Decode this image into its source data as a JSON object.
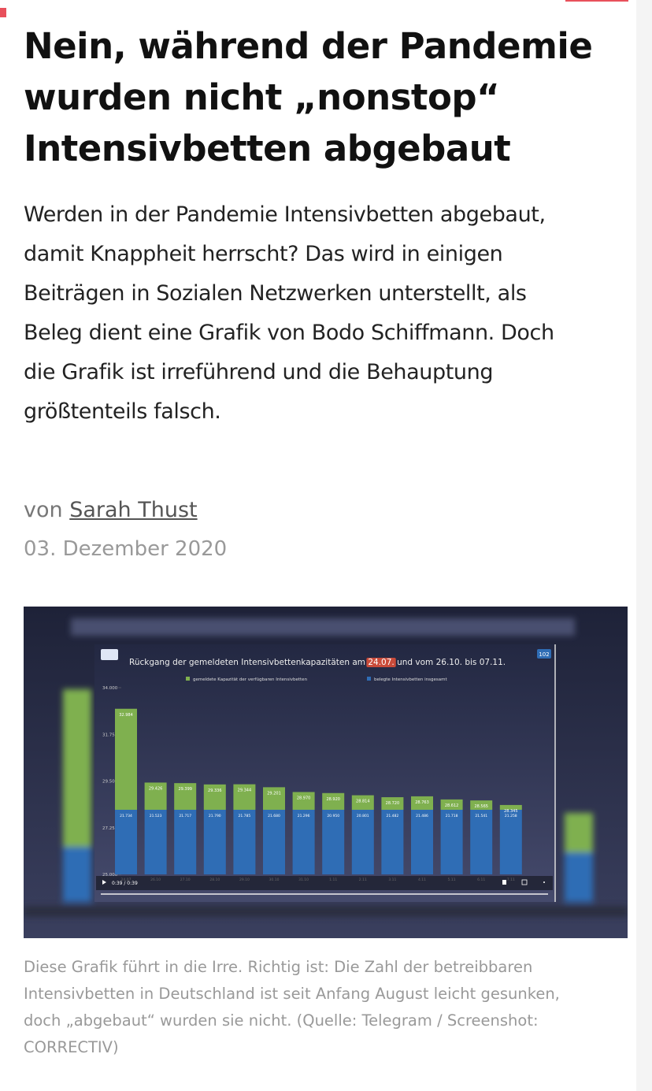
{
  "article": {
    "title_lines": [
      "Nein, während der Pandemie",
      "wurden nicht „nonstop“",
      "Intensivbetten abgebaut"
    ],
    "lead_lines": [
      "Werden in der Pandemie Intensivbetten abgebaut,",
      "damit Knappheit herrscht? Das wird in einigen",
      "Beiträgen in Sozialen Netzwerken unterstellt, als",
      "Beleg dient eine Grafik von Bodo Schiffmann. Doch",
      "die Grafik ist irreführend und die Behauptung",
      "größtenteils falsch."
    ],
    "byline_prefix": "von",
    "author": "Sarah Thust",
    "date": "03. Dezember 2020",
    "caption_lines": [
      "Diese Grafik führt in die Irre. Richtig ist: Die Zahl der betreibbaren",
      "Intensivbetten in Deutschland ist seit Anfang August leicht gesunken,",
      "doch „abgebaut“ wurden sie nicht. (Quelle: Telegram / Screenshot:",
      "CORRECTIV)"
    ]
  },
  "video": {
    "badge": "102",
    "time": "0:39 / 0:39"
  },
  "chart_data": {
    "type": "bar",
    "title_parts": [
      "Rückgang der gemeldeten Intensivbettenkapazitäten am",
      "24.07.",
      "und vom 26.10. bis 07.11."
    ],
    "categories": [
      "24.07",
      "26.10",
      "27.10",
      "28.10",
      "29.10",
      "30.10",
      "31.10",
      "1.11",
      "2.11",
      "3.11",
      "4.11",
      "5.11",
      "6.11",
      "7.11"
    ],
    "series": [
      {
        "name": "gemeldete Kapazität der verfügbaren Intensivbetten",
        "color": "#7fb04f",
        "values": [
          32984,
          29426,
          29399,
          29336,
          29344,
          29201,
          28970,
          28920,
          28814,
          28720,
          28763,
          28612,
          28565,
          28345
        ],
        "value_labels": [
          "32.984",
          "29.426",
          "29.399",
          "29.336",
          "29.344",
          "29.201",
          "28.970",
          "28.920",
          "28.814",
          "28.720",
          "28.763",
          "28.612",
          "28.565",
          "28.345"
        ]
      },
      {
        "name": "belegte Intensivbetten insgesamt",
        "color": "#2f6db5",
        "values": [
          21734,
          21523,
          21717,
          21790,
          21785,
          21680,
          21296,
          20950,
          20801,
          21482,
          21486,
          21718,
          21541,
          21258
        ],
        "value_labels": [
          "21.734",
          "21.523",
          "21.717",
          "21.790",
          "21.785",
          "21.680",
          "21.296",
          "20.950",
          "20.801",
          "21.482",
          "21.486",
          "21.718",
          "21.541",
          "21.258"
        ]
      }
    ],
    "ylim": [
      25000,
      34000
    ],
    "yticks": [
      {
        "value": 25000,
        "label": "25.000"
      },
      {
        "value": 27250,
        "label": "27.250"
      },
      {
        "value": 29500,
        "label": "29.500"
      },
      {
        "value": 31750,
        "label": "31.750"
      },
      {
        "value": 34000,
        "label": "34.000"
      }
    ]
  }
}
